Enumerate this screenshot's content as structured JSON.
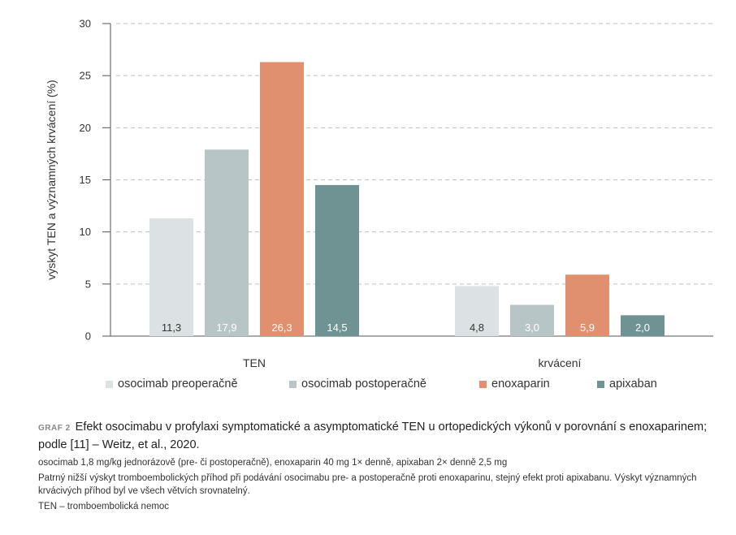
{
  "chart_data": {
    "type": "bar",
    "categories": [
      "TEN",
      "krvácení"
    ],
    "series": [
      {
        "name": "osocimab preoperačně",
        "color": "#dce2e3",
        "label_color": "#333333",
        "values": [
          11.3,
          4.8
        ],
        "labels": [
          "11,3",
          "4,8"
        ]
      },
      {
        "name": "osocimab postoperačně",
        "color": "#b8c5c6",
        "label_color": "#ffffff",
        "values": [
          17.9,
          3.0
        ],
        "labels": [
          "17,9",
          "3,0"
        ]
      },
      {
        "name": "enoxaparin",
        "color": "#e0906f",
        "label_color": "#ffffff",
        "values": [
          26.3,
          5.9
        ],
        "labels": [
          "26,3",
          "5,9"
        ]
      },
      {
        "name": "apixaban",
        "color": "#6f9393",
        "label_color": "#ffffff",
        "values": [
          14.5,
          2.0
        ],
        "labels": [
          "14,5",
          "2,0"
        ]
      }
    ],
    "ylabel": "výskyt TEN a významných krvácení (%)",
    "ylim": [
      0,
      30
    ],
    "yticks": [
      0,
      5,
      10,
      15,
      20,
      25,
      30
    ],
    "grid": "horizontal dashed",
    "legend": "bottom"
  },
  "caption": {
    "tag": "GRAF 2",
    "title": "Efekt osocimabu v profylaxi symptomatické a asymptomatické TEN u ortopedických výkonů v porovnání s enoxaparinem; podle [11] – Weitz, et al., 2020.",
    "dosing": "osocimab 1,8 mg/kg jednorázově (pre- či postoperačně), enoxaparin 40 mg 1× denně, apixaban 2× denně 2,5 mg",
    "note": "Patrný nižší výskyt tromboembolických příhod při podávání osocimabu pre- a postoperačně proti enoxaparinu, stejný efekt proti apixabanu. Výskyt významných krvácivých příhod byl ve všech větvích srovnatelný.",
    "abbrev": "TEN – tromboembolická nemoc"
  }
}
